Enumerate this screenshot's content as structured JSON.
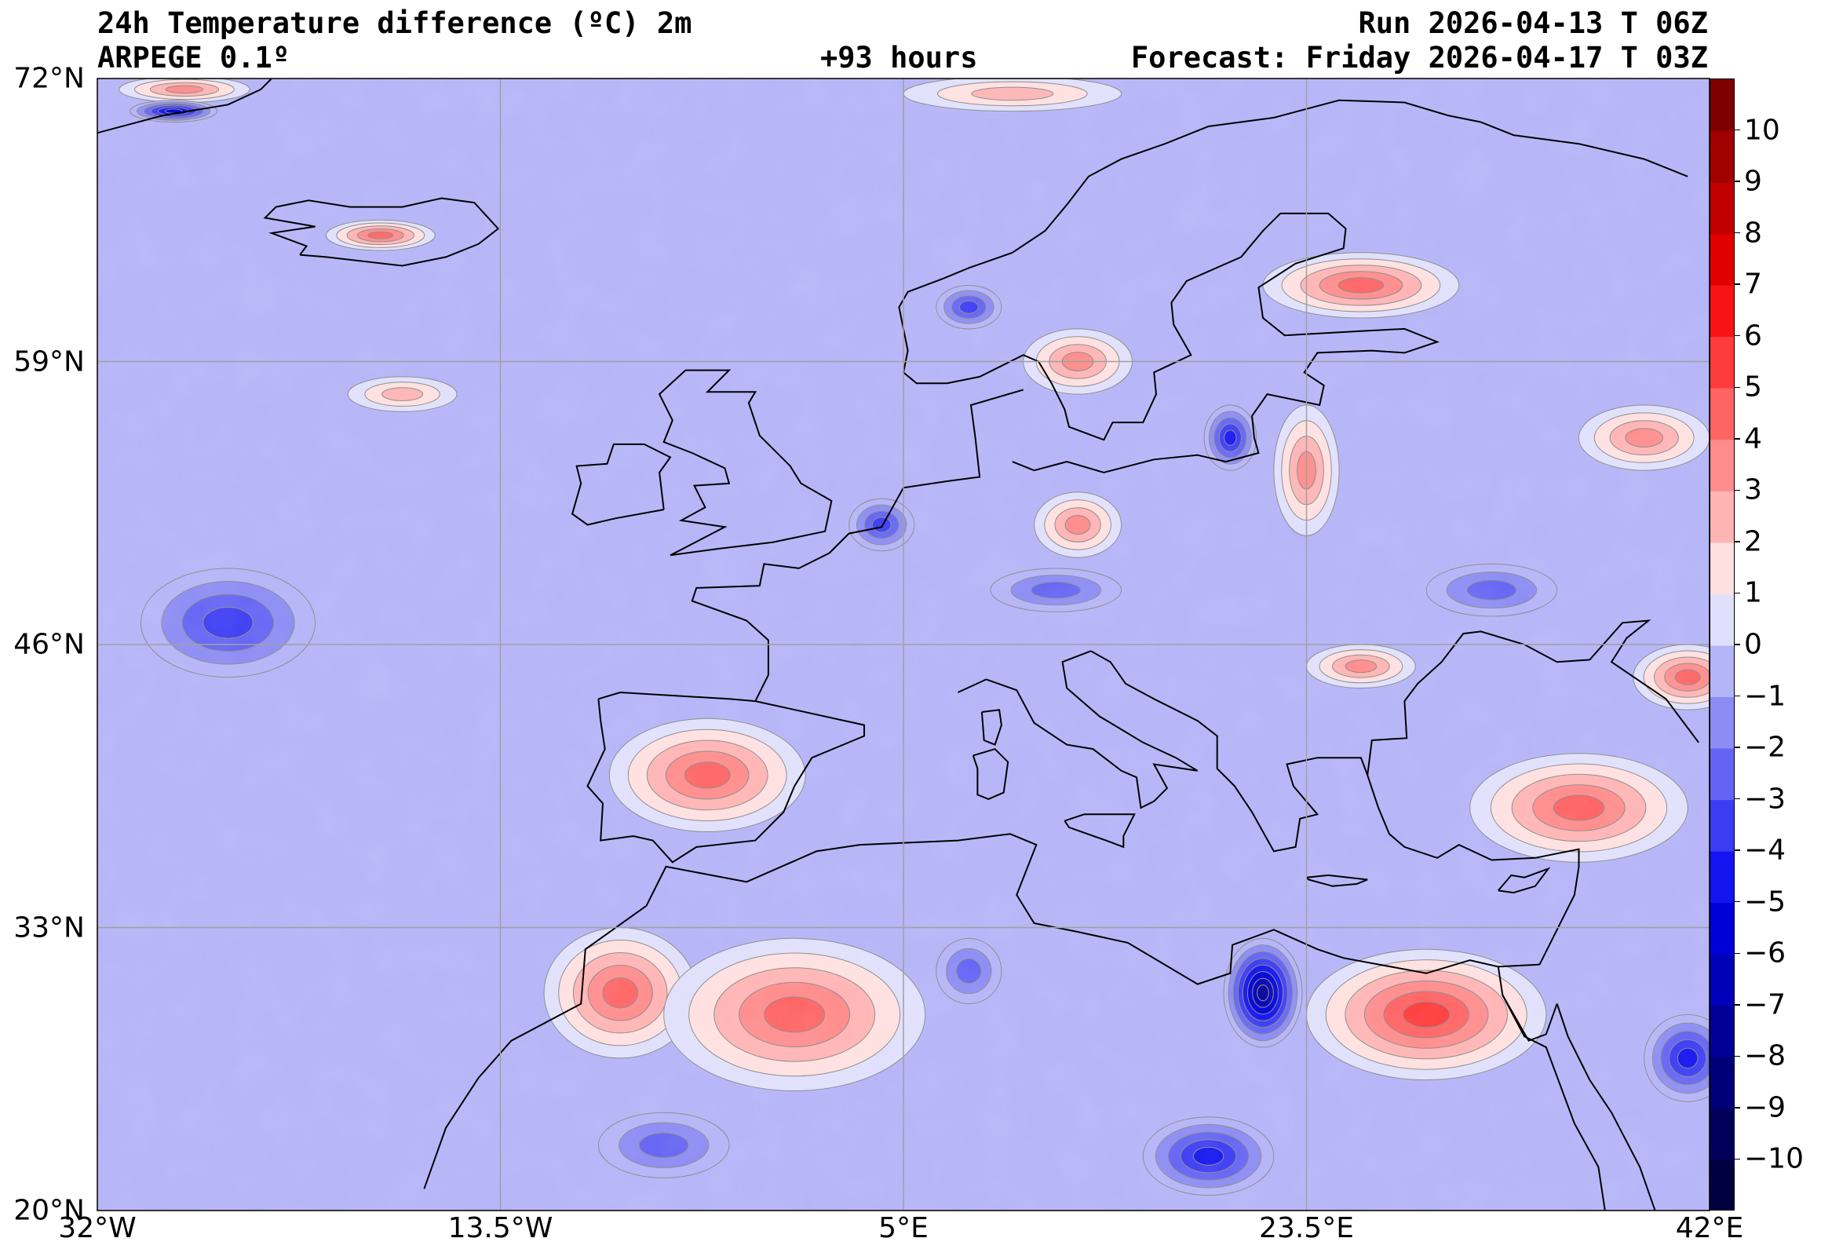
{
  "header": {
    "title": "24h Temperature difference (ºC) 2m",
    "model": "ARPEGE 0.1º",
    "lead": "+93 hours",
    "run": "Run 2026-04-13 T 06Z",
    "forecast": "Forecast: Friday 2026-04-17 T 03Z"
  },
  "map": {
    "lat_range": [
      20,
      72
    ],
    "lon_range": [
      -32,
      42
    ],
    "lat_labels": [
      {
        "value": 72,
        "text": "72°N"
      },
      {
        "value": 59,
        "text": "59°N"
      },
      {
        "value": 46,
        "text": "46°N"
      },
      {
        "value": 33,
        "text": "33°N"
      },
      {
        "value": 20,
        "text": "20°N"
      }
    ],
    "lon_labels": [
      {
        "value": -32,
        "text": "32°W"
      },
      {
        "value": -13.5,
        "text": "13.5°W"
      },
      {
        "value": 5,
        "text": "5°E"
      },
      {
        "value": 23.5,
        "text": "23.5°E"
      },
      {
        "value": 42,
        "text": "42°E"
      }
    ],
    "gridlines": true
  },
  "colorbar": {
    "levels": [
      -11,
      -10,
      -9,
      -8,
      -7,
      -6,
      -5,
      -4,
      -3,
      -2,
      -1,
      0,
      1,
      2,
      3,
      4,
      5,
      6,
      7,
      8,
      9,
      10,
      11
    ],
    "colors": [
      "#000040",
      "#00005a",
      "#000078",
      "#000096",
      "#0000b8",
      "#0000d8",
      "#1414f0",
      "#3c3cf4",
      "#6464f4",
      "#8c8cf4",
      "#b4b4f8",
      "#e0e0fc",
      "#ffe0e0",
      "#ffb4b4",
      "#ff8c8c",
      "#ff6464",
      "#ff3c3c",
      "#f81414",
      "#e00000",
      "#c00000",
      "#a00000",
      "#800000",
      "#600000"
    ],
    "tick_labels": [
      {
        "value": 10,
        "text": "10"
      },
      {
        "value": 9,
        "text": "9"
      },
      {
        "value": 8,
        "text": "8"
      },
      {
        "value": 7,
        "text": "7"
      },
      {
        "value": 6,
        "text": "6"
      },
      {
        "value": 5,
        "text": "5"
      },
      {
        "value": 4,
        "text": "4"
      },
      {
        "value": 3,
        "text": "3"
      },
      {
        "value": 2,
        "text": "2"
      },
      {
        "value": 1,
        "text": "1"
      },
      {
        "value": 0,
        "text": "0"
      },
      {
        "value": -1,
        "text": "−1"
      },
      {
        "value": -2,
        "text": "−2"
      },
      {
        "value": -3,
        "text": "−3"
      },
      {
        "value": -4,
        "text": "−4"
      },
      {
        "value": -5,
        "text": "−5"
      },
      {
        "value": -6,
        "text": "−6"
      },
      {
        "value": -7,
        "text": "−7"
      },
      {
        "value": -8,
        "text": "−8"
      },
      {
        "value": -9,
        "text": "−9"
      },
      {
        "value": -10,
        "text": "−10"
      }
    ]
  },
  "field": {
    "background_level": 0,
    "anomalies": [
      {
        "name": "iberia-warm",
        "lon": -4,
        "lat": 40,
        "value": 4,
        "spread_lon": 4.5,
        "spread_lat": 2.6
      },
      {
        "name": "morocco-warm",
        "lon": -8,
        "lat": 30,
        "value": 4,
        "spread_lon": 3.5,
        "spread_lat": 3
      },
      {
        "name": "algeria-warm",
        "lon": 0,
        "lat": 29,
        "value": 4,
        "spread_lon": 6,
        "spread_lat": 3.5
      },
      {
        "name": "egypt-warm",
        "lon": 29,
        "lat": 29,
        "value": 5,
        "spread_lon": 5.5,
        "spread_lat": 3
      },
      {
        "name": "turkey-warm",
        "lon": 36,
        "lat": 38.5,
        "value": 4,
        "spread_lon": 5,
        "spread_lat": 2.5
      },
      {
        "name": "finland-warm",
        "lon": 26,
        "lat": 62.5,
        "value": 4,
        "spread_lon": 4.5,
        "spread_lat": 1.5
      },
      {
        "name": "norway-sweden-warm",
        "lon": 13,
        "lat": 59,
        "value": 3,
        "spread_lon": 2.5,
        "spread_lat": 1.5
      },
      {
        "name": "germany-warm",
        "lon": 13,
        "lat": 51.5,
        "value": 3,
        "spread_lon": 2,
        "spread_lat": 1.5
      },
      {
        "name": "baltic-warm",
        "lon": 23.5,
        "lat": 54,
        "value": 3,
        "spread_lon": 1.5,
        "spread_lat": 3
      },
      {
        "name": "russia-warm",
        "lon": 39,
        "lat": 55.5,
        "value": 3,
        "spread_lon": 3,
        "spread_lat": 1.5
      },
      {
        "name": "caucasus-warm",
        "lon": 41,
        "lat": 44.5,
        "value": 4,
        "spread_lon": 2.5,
        "spread_lat": 1.5
      },
      {
        "name": "romania-warm",
        "lon": 26,
        "lat": 45,
        "value": 3,
        "spread_lon": 2.5,
        "spread_lat": 1
      },
      {
        "name": "iceland-warm",
        "lon": -19,
        "lat": 64.8,
        "value": 4,
        "spread_lon": 2.5,
        "spread_lat": 0.7
      },
      {
        "name": "greenland-warm",
        "lon": -28,
        "lat": 71.5,
        "value": 3,
        "spread_lon": 3,
        "spread_lat": 0.6
      },
      {
        "name": "barents-warm",
        "lon": 10,
        "lat": 71.3,
        "value": 2,
        "spread_lon": 5,
        "spread_lat": 0.8
      },
      {
        "name": "atlantic-warm",
        "lon": -18,
        "lat": 57.5,
        "value": 2,
        "spread_lon": 2.5,
        "spread_lat": 0.8
      },
      {
        "name": "libya-cold",
        "lon": 21.5,
        "lat": 30,
        "value": -7,
        "spread_lon": 1.8,
        "spread_lat": 2.5
      },
      {
        "name": "libya-desert-cold",
        "lon": 19,
        "lat": 22.5,
        "value": -4,
        "spread_lon": 3,
        "spread_lat": 1.8
      },
      {
        "name": "atlantic-cold",
        "lon": -26,
        "lat": 47,
        "value": -3,
        "spread_lon": 4,
        "spread_lat": 2.5
      },
      {
        "name": "greenland-cold",
        "lon": -28.5,
        "lat": 70.5,
        "value": -5,
        "spread_lon": 2,
        "spread_lat": 0.5
      },
      {
        "name": "benelux-cold",
        "lon": 4,
        "lat": 51.5,
        "value": -3,
        "spread_lon": 1.5,
        "spread_lat": 1.2
      },
      {
        "name": "baltic-cold",
        "lon": 20,
        "lat": 55.5,
        "value": -4,
        "spread_lon": 1.2,
        "spread_lat": 1.5
      },
      {
        "name": "germany-cold",
        "lon": 12,
        "lat": 48.5,
        "value": -2,
        "spread_lon": 3,
        "spread_lat": 1
      },
      {
        "name": "norway-cold",
        "lon": 8,
        "lat": 61.5,
        "value": -3,
        "spread_lon": 1.5,
        "spread_lat": 1
      },
      {
        "name": "ukraine-cold",
        "lon": 32,
        "lat": 48.5,
        "value": -2,
        "spread_lon": 3,
        "spread_lat": 1.2
      },
      {
        "name": "sahara-cold",
        "lon": -6,
        "lat": 23,
        "value": -2,
        "spread_lon": 3,
        "spread_lat": 1.5
      },
      {
        "name": "arabia-cold",
        "lon": 41,
        "lat": 27,
        "value": -4,
        "spread_lon": 2,
        "spread_lat": 2
      },
      {
        "name": "tunisia-cold",
        "lon": 8,
        "lat": 31,
        "value": -2,
        "spread_lon": 1.5,
        "spread_lat": 1.5
      }
    ]
  }
}
